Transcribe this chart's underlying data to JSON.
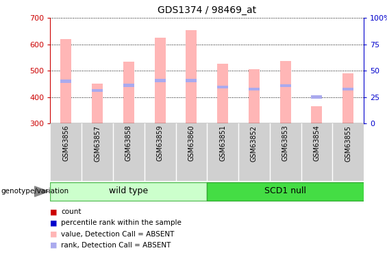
{
  "title": "GDS1374 / 98469_at",
  "samples": [
    "GSM63856",
    "GSM63857",
    "GSM63858",
    "GSM63859",
    "GSM63860",
    "GSM63851",
    "GSM63852",
    "GSM63853",
    "GSM63854",
    "GSM63855"
  ],
  "groups": [
    "wild type",
    "wild type",
    "wild type",
    "wild type",
    "wild type",
    "SCD1 null",
    "SCD1 null",
    "SCD1 null",
    "SCD1 null",
    "SCD1 null"
  ],
  "bar_tops": [
    620,
    450,
    535,
    625,
    655,
    527,
    505,
    538,
    365,
    490
  ],
  "bar_base": 300,
  "rank_values": [
    460,
    425,
    445,
    462,
    462,
    438,
    430,
    443,
    400,
    430
  ],
  "ylim_left": [
    300,
    700
  ],
  "ylim_right": [
    0,
    100
  ],
  "yticks_left": [
    300,
    400,
    500,
    600,
    700
  ],
  "yticks_right": [
    0,
    25,
    50,
    75,
    100
  ],
  "bar_color": "#FFB6B6",
  "rank_color": "#AAAAEE",
  "left_tick_color": "#CC0000",
  "right_tick_color": "#0000CC",
  "grid_color": "#000000",
  "wild_type_color_light": "#CCFFCC",
  "wild_type_color_edge": "#55BB55",
  "scd1_color": "#44DD44",
  "scd1_color_edge": "#33AA33",
  "legend_colors": [
    "#CC0000",
    "#0000CC",
    "#FFB6B6",
    "#AAAAEE"
  ],
  "legend_labels": [
    "count",
    "percentile rank within the sample",
    "value, Detection Call = ABSENT",
    "rank, Detection Call = ABSENT"
  ],
  "genotype_label": "genotype/variation",
  "bar_width": 0.35
}
